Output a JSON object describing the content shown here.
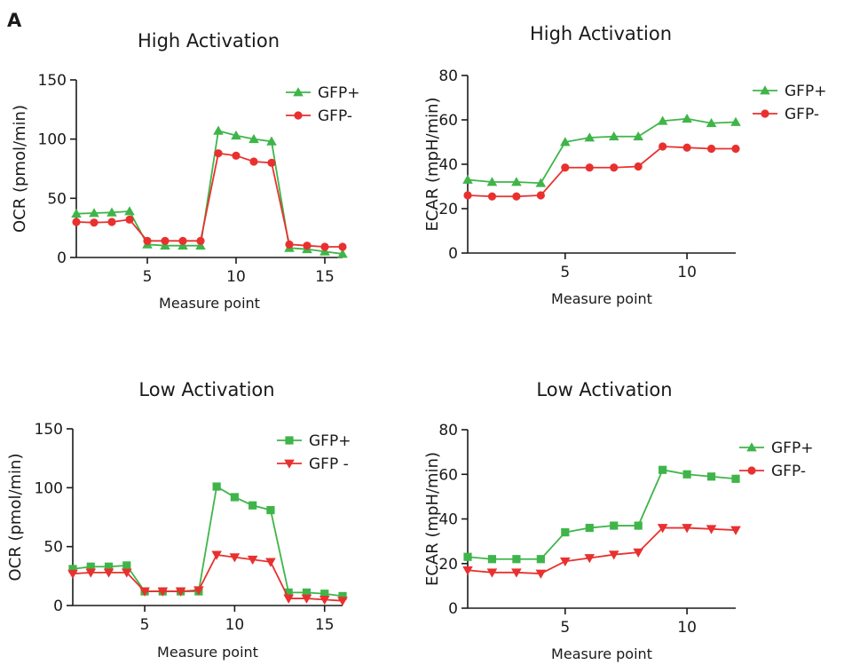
{
  "panel_label": "A",
  "colors": {
    "green": "#3fb549",
    "red": "#e8312f"
  },
  "chart_data": [
    {
      "id": "high-ocr",
      "type": "line",
      "title": "High Activation",
      "xlabel": "Measure point",
      "ylabel": "OCR (pmol/min)",
      "xlim": [
        1,
        16
      ],
      "ylim": [
        0,
        150
      ],
      "xticks": [
        5,
        10,
        15
      ],
      "yticks": [
        0,
        50,
        100,
        150
      ],
      "grid": false,
      "legend_position": "top-right",
      "x": [
        1,
        2,
        3,
        4,
        5,
        6,
        7,
        8,
        9,
        10,
        11,
        12,
        13,
        14,
        15,
        16
      ],
      "series": [
        {
          "name": "GFP+",
          "color": "#3fb549",
          "marker": "triangle-up",
          "values": [
            37,
            37.5,
            38,
            39,
            11,
            10,
            10,
            10,
            107,
            103,
            100,
            98,
            8,
            7,
            5,
            3
          ]
        },
        {
          "name": "GFP-",
          "color": "#e8312f",
          "marker": "circle",
          "values": [
            30,
            29.5,
            30,
            32,
            14,
            14,
            14,
            14,
            88,
            86,
            81,
            80,
            11,
            10,
            9,
            9
          ]
        }
      ]
    },
    {
      "id": "high-ecar",
      "type": "line",
      "title": "High Activation",
      "xlabel": "Measure point",
      "ylabel": "ECAR (mpH/min)",
      "xlim": [
        1,
        12
      ],
      "ylim": [
        0,
        80
      ],
      "xticks": [
        5,
        10
      ],
      "yticks": [
        0,
        20,
        40,
        60,
        80
      ],
      "grid": false,
      "legend_position": "top-right",
      "x": [
        1,
        2,
        3,
        4,
        5,
        6,
        7,
        8,
        9,
        10,
        11,
        12
      ],
      "series": [
        {
          "name": "GFP+",
          "color": "#3fb549",
          "marker": "triangle-up",
          "values": [
            33,
            32,
            32,
            31.5,
            50,
            52,
            52.5,
            52.5,
            59.5,
            60.5,
            58.5,
            59
          ]
        },
        {
          "name": "GFP-",
          "color": "#e8312f",
          "marker": "circle",
          "values": [
            26,
            25.5,
            25.5,
            26,
            38.5,
            38.5,
            38.5,
            39,
            48,
            47.5,
            47,
            47
          ]
        }
      ]
    },
    {
      "id": "low-ocr",
      "type": "line",
      "title": "Low Activation",
      "xlabel": "Measure point",
      "ylabel": "OCR (pmol/min)",
      "xlim": [
        1,
        16
      ],
      "ylim": [
        0,
        150
      ],
      "xticks": [
        5,
        10,
        15
      ],
      "yticks": [
        0,
        50,
        100,
        150
      ],
      "grid": false,
      "legend_position": "top-right",
      "x": [
        1,
        2,
        3,
        4,
        5,
        6,
        7,
        8,
        9,
        10,
        11,
        12,
        13,
        14,
        15,
        16
      ],
      "series": [
        {
          "name": "GFP+",
          "color": "#3fb549",
          "marker": "square",
          "values": [
            31,
            33,
            33,
            34,
            12,
            12,
            12,
            12,
            101,
            92,
            85,
            81,
            11,
            11,
            10,
            8
          ]
        },
        {
          "name": "GFP -",
          "color": "#e8312f",
          "marker": "triangle-down",
          "values": [
            27,
            28,
            28,
            28,
            12,
            12,
            12,
            13,
            43,
            41,
            39,
            37,
            6,
            6,
            5,
            4
          ]
        }
      ]
    },
    {
      "id": "low-ecar",
      "type": "line",
      "title": "Low Activation",
      "xlabel": "Measure point",
      "ylabel": "ECAR (mpH/min)",
      "xlim": [
        1,
        12
      ],
      "ylim": [
        0,
        80
      ],
      "xticks": [
        5,
        10
      ],
      "yticks": [
        0,
        20,
        40,
        60,
        80
      ],
      "grid": false,
      "legend_position": "top-right",
      "legend_markers": [
        "triangle-up",
        "circle"
      ],
      "x": [
        1,
        2,
        3,
        4,
        5,
        6,
        7,
        8,
        9,
        10,
        11,
        12
      ],
      "series": [
        {
          "name": "GFP+",
          "color": "#3fb549",
          "marker": "square",
          "values": [
            23,
            22,
            22,
            22,
            34,
            36,
            37,
            37,
            62,
            60,
            59,
            58
          ]
        },
        {
          "name": "GFP-",
          "color": "#e8312f",
          "marker": "triangle-down",
          "values": [
            17,
            16,
            16,
            15.5,
            21,
            22.5,
            24,
            25,
            36,
            36,
            35.5,
            35
          ]
        }
      ]
    }
  ]
}
